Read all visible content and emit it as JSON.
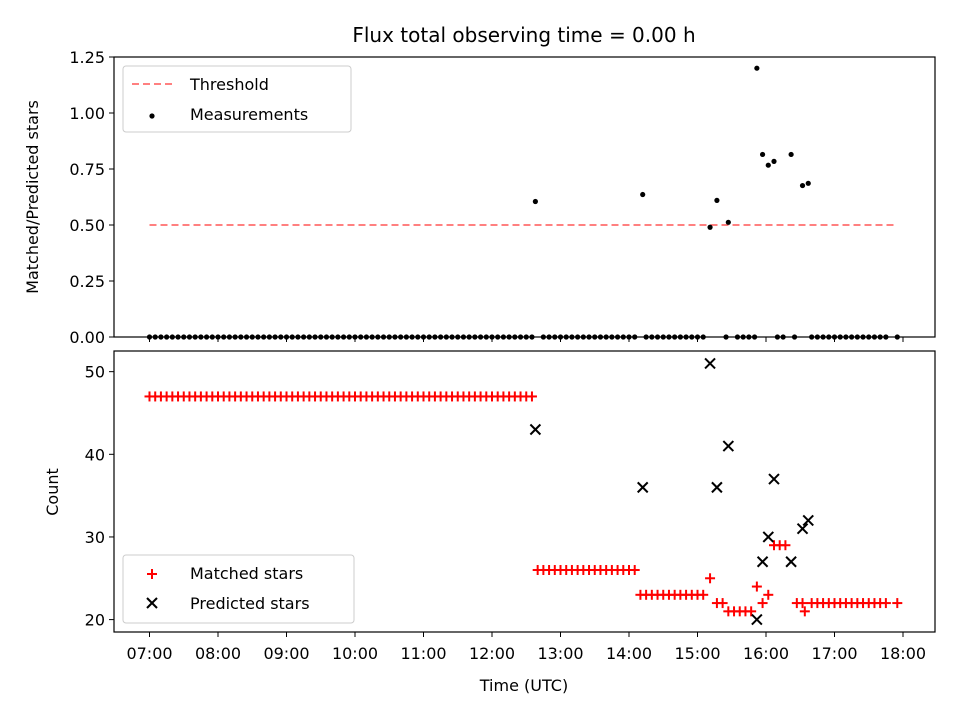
{
  "chart_data": [
    {
      "type": "scatter",
      "title": "Flux total observing time = 0.00 h",
      "ylabel": "Matched/Predicted stars",
      "xlabel": "",
      "ylim": [
        0,
        1.25
      ],
      "yticks": [
        "0.00",
        "0.25",
        "0.50",
        "0.75",
        "1.00",
        "1.25"
      ],
      "legend_position": "top-left",
      "threshold": {
        "name": "Threshold",
        "value": 0.5,
        "x_start": "07:00",
        "x_end": "17:55",
        "color": "#ff8080"
      },
      "measurements": {
        "name": "Measurements",
        "color": "#000000",
        "zero_start": "07:00",
        "zero_end": "12:35",
        "zero_step_min": 5,
        "zero_points_extra": [
          "12:45",
          "12:50",
          "12:55",
          "13:00",
          "13:05",
          "13:10",
          "13:15",
          "13:20",
          "13:25",
          "13:30",
          "13:35",
          "13:40",
          "13:45",
          "13:50",
          "13:55",
          "14:00",
          "14:05",
          "14:15",
          "14:20",
          "14:25",
          "14:30",
          "14:35",
          "14:40",
          "14:45",
          "14:50",
          "14:55",
          "15:00",
          "15:05",
          "15:25",
          "15:35",
          "15:40",
          "15:45",
          "15:50",
          "16:10",
          "16:15",
          "16:25",
          "16:40",
          "16:45",
          "16:50",
          "16:55",
          "17:00",
          "17:05",
          "17:10",
          "17:15",
          "17:20",
          "17:25",
          "17:30",
          "17:35",
          "17:40",
          "17:45",
          "17:55"
        ],
        "nonzero_points": [
          {
            "x": "12:38",
            "y": 0.605
          },
          {
            "x": "14:12",
            "y": 0.636
          },
          {
            "x": "15:11",
            "y": 0.49
          },
          {
            "x": "15:17",
            "y": 0.61
          },
          {
            "x": "15:27",
            "y": 0.512
          },
          {
            "x": "15:52",
            "y": 1.2
          },
          {
            "x": "15:57",
            "y": 0.815
          },
          {
            "x": "16:02",
            "y": 0.767
          },
          {
            "x": "16:07",
            "y": 0.784
          },
          {
            "x": "16:22",
            "y": 0.815
          },
          {
            "x": "16:32",
            "y": 0.676
          },
          {
            "x": "16:37",
            "y": 0.686
          }
        ]
      }
    },
    {
      "type": "scatter",
      "xlabel": "Time (UTC)",
      "ylabel": "Count",
      "ylim": [
        18.5,
        52.5
      ],
      "yticks": [
        "20",
        "30",
        "40",
        "50"
      ],
      "xticks": [
        "07:00",
        "08:00",
        "09:00",
        "10:00",
        "11:00",
        "12:00",
        "13:00",
        "14:00",
        "15:00",
        "16:00",
        "17:00",
        "18:00"
      ],
      "legend_position": "bottom-left",
      "matched": {
        "name": "Matched stars",
        "color": "#ff0000",
        "runs": [
          {
            "start": "07:00",
            "end": "12:35",
            "step_min": 5,
            "y": 47
          },
          {
            "start": "12:40",
            "end": "14:05",
            "step_min": 5,
            "y": 26
          },
          {
            "start": "14:10",
            "end": "15:05",
            "step_min": 5,
            "y": 23
          },
          {
            "start": "16:40",
            "end": "17:45",
            "step_min": 5,
            "y": 22
          }
        ],
        "points": [
          {
            "x": "15:11",
            "y": 25
          },
          {
            "x": "15:17",
            "y": 22
          },
          {
            "x": "15:22",
            "y": 22
          },
          {
            "x": "15:27",
            "y": 21
          },
          {
            "x": "15:32",
            "y": 21
          },
          {
            "x": "15:37",
            "y": 21
          },
          {
            "x": "15:42",
            "y": 21
          },
          {
            "x": "15:47",
            "y": 21
          },
          {
            "x": "15:52",
            "y": 24
          },
          {
            "x": "15:57",
            "y": 22
          },
          {
            "x": "16:02",
            "y": 23
          },
          {
            "x": "16:07",
            "y": 29
          },
          {
            "x": "16:12",
            "y": 29
          },
          {
            "x": "16:17",
            "y": 29
          },
          {
            "x": "16:27",
            "y": 22
          },
          {
            "x": "16:32",
            "y": 22
          },
          {
            "x": "16:34",
            "y": 21
          },
          {
            "x": "17:55",
            "y": 22
          }
        ]
      },
      "predicted": {
        "name": "Predicted stars",
        "color": "#000000",
        "points": [
          {
            "x": "12:38",
            "y": 43
          },
          {
            "x": "14:12",
            "y": 36
          },
          {
            "x": "15:11",
            "y": 51
          },
          {
            "x": "15:17",
            "y": 36
          },
          {
            "x": "15:27",
            "y": 41
          },
          {
            "x": "15:52",
            "y": 20
          },
          {
            "x": "15:57",
            "y": 27
          },
          {
            "x": "16:02",
            "y": 30
          },
          {
            "x": "16:07",
            "y": 37
          },
          {
            "x": "16:22",
            "y": 27
          },
          {
            "x": "16:32",
            "y": 31
          },
          {
            "x": "16:37",
            "y": 32
          }
        ]
      }
    }
  ]
}
